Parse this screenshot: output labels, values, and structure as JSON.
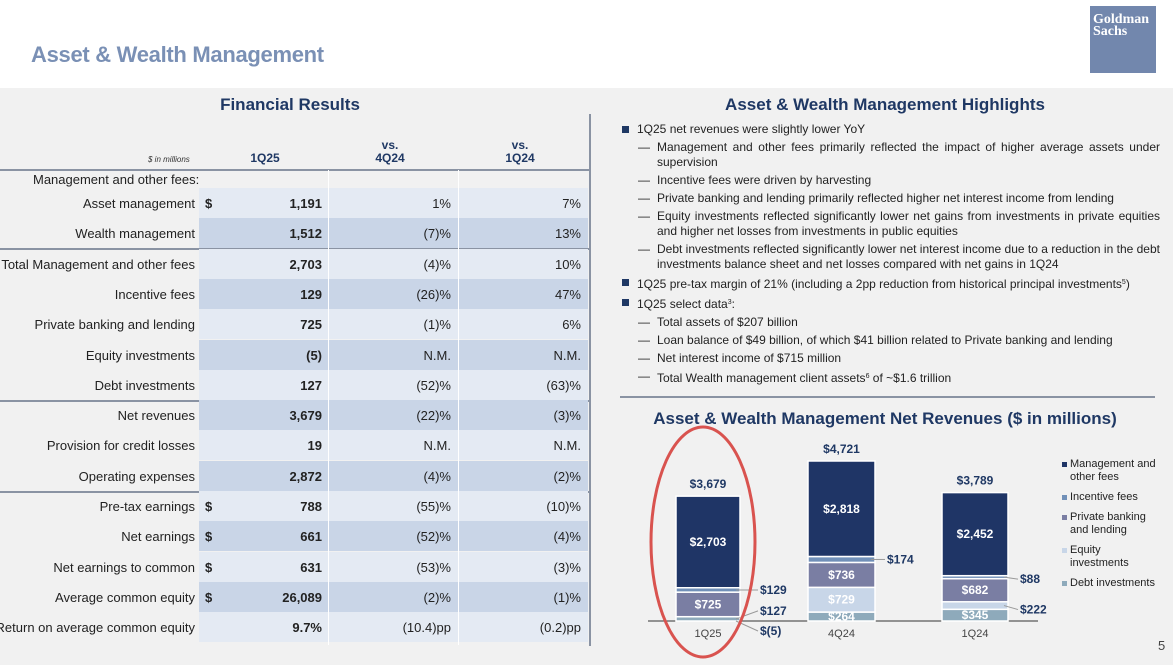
{
  "header": {
    "title": "Asset & Wealth Management",
    "logo_line1": "Goldman",
    "logo_line2": "Sachs"
  },
  "financial_results": {
    "title": "Financial Results",
    "units": "$ in millions",
    "columns": [
      "1Q25",
      "vs.\n4Q24",
      "vs.\n1Q24"
    ],
    "col_1": "1Q25",
    "col_2a": "vs.",
    "col_2b": "4Q24",
    "col_3a": "vs.",
    "col_3b": "1Q24",
    "section_label": "Management and other fees:",
    "rows": [
      {
        "label": "Asset management",
        "dollar": "$",
        "value": "1,191",
        "vs_4q24": "1%",
        "vs_1q24": "7%"
      },
      {
        "label": "Wealth management",
        "dollar": "",
        "value": "1,512",
        "vs_4q24": "(7)%",
        "vs_1q24": "13%"
      },
      {
        "label": "Total Management and other fees",
        "dollar": "",
        "value": "2,703",
        "vs_4q24": "(4)%",
        "vs_1q24": "10%"
      },
      {
        "label": "Incentive fees",
        "dollar": "",
        "value": "129",
        "vs_4q24": "(26)%",
        "vs_1q24": "47%"
      },
      {
        "label": "Private banking and lending",
        "dollar": "",
        "value": "725",
        "vs_4q24": "(1)%",
        "vs_1q24": "6%"
      },
      {
        "label": "Equity investments",
        "dollar": "",
        "value": "(5)",
        "vs_4q24": "N.M.",
        "vs_1q24": "N.M."
      },
      {
        "label": "Debt investments",
        "dollar": "",
        "value": "127",
        "vs_4q24": "(52)%",
        "vs_1q24": "(63)%"
      },
      {
        "label": "Net revenues",
        "dollar": "",
        "value": "3,679",
        "vs_4q24": "(22)%",
        "vs_1q24": "(3)%"
      },
      {
        "label": "Provision for credit losses",
        "dollar": "",
        "value": "19",
        "vs_4q24": "N.M.",
        "vs_1q24": "N.M."
      },
      {
        "label": "Operating expenses",
        "dollar": "",
        "value": "2,872",
        "vs_4q24": "(4)%",
        "vs_1q24": "(2)%"
      },
      {
        "label": "Pre-tax earnings",
        "dollar": "$",
        "value": "788",
        "vs_4q24": "(55)%",
        "vs_1q24": "(10)%"
      },
      {
        "label": "Net earnings",
        "dollar": "$",
        "value": "661",
        "vs_4q24": "(52)%",
        "vs_1q24": "(4)%"
      },
      {
        "label": "Net earnings to common",
        "dollar": "$",
        "value": "631",
        "vs_4q24": "(53)%",
        "vs_1q24": "(3)%"
      },
      {
        "label": "Average common equity",
        "dollar": "$",
        "value": "26,089",
        "vs_4q24": "(2)%",
        "vs_1q24": "(1)%"
      },
      {
        "label": "Return on average common equity",
        "dollar": "",
        "value": "9.7%",
        "vs_4q24": "(10.4)pp",
        "vs_1q24": "(0.2)pp"
      }
    ]
  },
  "highlights": {
    "title": "Asset & Wealth Management Highlights",
    "b1": "1Q25 net revenues were slightly lower YoY",
    "b1_subs": [
      "Management and other fees primarily reflected the impact of higher average assets under supervision",
      "Incentive fees were driven by harvesting",
      "Private banking and lending primarily reflected higher net interest income from lending",
      "Equity investments reflected significantly lower net gains from investments in private equities and higher net losses from investments in public equities",
      "Debt investments reflected significantly lower net interest income due to a reduction in the debt investments balance sheet and net losses compared with net gains in 1Q24"
    ],
    "b2": "1Q25 pre-tax margin of 21% (including a 2pp reduction from historical principal investments",
    "b2_sup": "5",
    "b2_end": ")",
    "b3": "1Q25 select data",
    "b3_sup": "3",
    "b3_end": ":",
    "b3_subs": [
      "Total assets of $207 billion",
      "Loan balance of $49 billion, of which $41 billion related to Private banking and lending",
      "Net interest income of $715 million"
    ],
    "b3_last": "Total Wealth management client assets",
    "b3_last_sup": "6",
    "b3_last_end": " of ~$1.6 trillion"
  },
  "chart_data": {
    "type": "bar",
    "stacked": true,
    "title": "Asset & Wealth Management Net Revenues ($ in millions)",
    "categories": [
      "1Q25",
      "4Q24",
      "1Q24"
    ],
    "totals": [
      3679,
      4721,
      3789
    ],
    "total_labels": [
      "$3,679",
      "$4,721",
      "$3,789"
    ],
    "series": [
      {
        "name": "Debt investments",
        "color": "#8eaabb",
        "values": [
          127,
          264,
          345
        ],
        "labels": [
          "$127",
          "$264",
          "$345"
        ]
      },
      {
        "name": "Equity investments",
        "color": "#c8d6e8",
        "values": [
          -5,
          729,
          222
        ],
        "labels": [
          "$(5)",
          "$729",
          "$222"
        ]
      },
      {
        "name": "Private banking and lending",
        "color": "#7a7ea3",
        "values": [
          725,
          736,
          682
        ],
        "labels": [
          "$725",
          "$736",
          "$682"
        ]
      },
      {
        "name": "Incentive fees",
        "color": "#7190b8",
        "values": [
          129,
          174,
          88
        ],
        "labels": [
          "$129",
          "$174",
          "$88"
        ]
      },
      {
        "name": "Management and other fees",
        "color": "#1f3566",
        "values": [
          2703,
          2818,
          2452
        ],
        "labels": [
          "$2,703",
          "$2,818",
          "$2,452"
        ]
      }
    ],
    "legend": [
      "Management and other fees",
      "Incentive fees",
      "Private banking and lending",
      "Equity investments",
      "Debt investments"
    ],
    "legend_colors": [
      "#1f3566",
      "#7190b8",
      "#7a7ea3",
      "#c8d6e8",
      "#8eaabb"
    ],
    "legend_placement": "right",
    "highlight": "1Q25 circled in red"
  },
  "page_number": "5"
}
